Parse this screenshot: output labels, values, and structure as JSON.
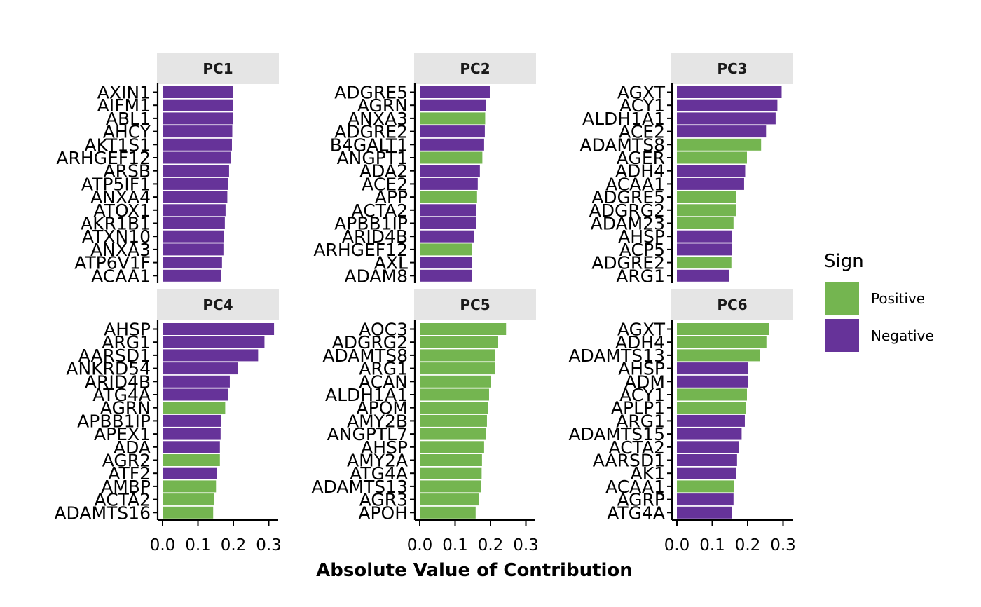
{
  "chart_data": {
    "type": "bar",
    "orientation": "horizontal",
    "xlabel": "Absolute Value of Contribution",
    "xlim": [
      0,
      0.33
    ],
    "xticks": [
      "0.0",
      "0.1",
      "0.2",
      "0.3"
    ],
    "grid": false,
    "legend": {
      "title": "Sign",
      "placement": "right",
      "items": [
        {
          "label": "Positive",
          "color": "#74B550"
        },
        {
          "label": "Negative",
          "color": "#663399"
        }
      ]
    },
    "colors": {
      "Positive": "#74B550",
      "Negative": "#663399",
      "strip": "#E5E5E5"
    },
    "panels": [
      {
        "title": "PC1",
        "genes": [
          "AXIN1",
          "AIFM1",
          "ABL1",
          "AHCY",
          "AKT1S1",
          "ARHGEF12",
          "ARSB",
          "ATP5IF1",
          "ANXA4",
          "ATOX1",
          "AKR1B1",
          "ATXN10",
          "ANXA3",
          "ATP6V1F",
          "ACAA1"
        ],
        "values": [
          0.2,
          0.199,
          0.199,
          0.197,
          0.196,
          0.194,
          0.188,
          0.186,
          0.183,
          0.178,
          0.176,
          0.174,
          0.172,
          0.168,
          0.165
        ],
        "signs": [
          "Negative",
          "Negative",
          "Negative",
          "Negative",
          "Negative",
          "Negative",
          "Negative",
          "Negative",
          "Negative",
          "Negative",
          "Negative",
          "Negative",
          "Negative",
          "Negative",
          "Negative"
        ]
      },
      {
        "title": "PC2",
        "genes": [
          "ADGRE5",
          "AGRN",
          "ANXA3",
          "ADGRE2",
          "B4GALT1",
          "ANGPT1",
          "ADA2",
          "ACE2",
          "APP",
          "ACTA2",
          "APBB1IP",
          "ARID4B",
          "ARHGEF12",
          "AXL",
          "ADAM8"
        ],
        "values": [
          0.198,
          0.188,
          0.185,
          0.184,
          0.182,
          0.177,
          0.17,
          0.164,
          0.162,
          0.16,
          0.16,
          0.154,
          0.148,
          0.148,
          0.148
        ],
        "signs": [
          "Negative",
          "Negative",
          "Positive",
          "Negative",
          "Negative",
          "Positive",
          "Negative",
          "Negative",
          "Positive",
          "Negative",
          "Negative",
          "Negative",
          "Positive",
          "Negative",
          "Negative"
        ]
      },
      {
        "title": "PC3",
        "genes": [
          "AGXT",
          "ACY1",
          "ALDH1A1",
          "ACE2",
          "ADAMTS8",
          "AGER",
          "ADH4",
          "ACAA1",
          "ADGRE5",
          "ADGRG2",
          "ADAM23",
          "AHSP",
          "ACP5",
          "ADGRE2",
          "ARG1"
        ],
        "values": [
          0.296,
          0.284,
          0.279,
          0.252,
          0.238,
          0.198,
          0.193,
          0.19,
          0.168,
          0.168,
          0.16,
          0.156,
          0.156,
          0.154,
          0.148
        ],
        "signs": [
          "Negative",
          "Negative",
          "Negative",
          "Negative",
          "Positive",
          "Positive",
          "Negative",
          "Negative",
          "Positive",
          "Positive",
          "Positive",
          "Negative",
          "Negative",
          "Positive",
          "Negative"
        ]
      },
      {
        "title": "PC4",
        "genes": [
          "AHSP",
          "ARG1",
          "AARSD1",
          "ANKRD54",
          "ARID4B",
          "ATG4A",
          "AGRN",
          "APBB1IP",
          "APEX1",
          "ADA",
          "AGR2",
          "ATF2",
          "AMBP",
          "ACTA2",
          "ADAMTS16"
        ],
        "values": [
          0.315,
          0.288,
          0.27,
          0.212,
          0.19,
          0.186,
          0.177,
          0.166,
          0.164,
          0.162,
          0.162,
          0.154,
          0.151,
          0.146,
          0.143
        ],
        "signs": [
          "Negative",
          "Negative",
          "Negative",
          "Negative",
          "Negative",
          "Negative",
          "Positive",
          "Negative",
          "Negative",
          "Negative",
          "Positive",
          "Negative",
          "Positive",
          "Positive",
          "Positive"
        ]
      },
      {
        "title": "PC5",
        "genes": [
          "AOC3",
          "ADGRG2",
          "ADAMTS8",
          "ARG1",
          "ACAN",
          "ALDH1A1",
          "APOM",
          "AMY2B",
          "ANGPTL7",
          "AHSP",
          "AMY2A",
          "ATG4A",
          "ADAMTS13",
          "AGR3",
          "APOH"
        ],
        "values": [
          0.244,
          0.221,
          0.213,
          0.212,
          0.2,
          0.196,
          0.194,
          0.19,
          0.188,
          0.182,
          0.176,
          0.175,
          0.173,
          0.167,
          0.158
        ],
        "signs": [
          "Positive",
          "Positive",
          "Positive",
          "Positive",
          "Positive",
          "Positive",
          "Positive",
          "Positive",
          "Positive",
          "Positive",
          "Positive",
          "Positive",
          "Positive",
          "Positive",
          "Positive"
        ]
      },
      {
        "title": "PC6",
        "genes": [
          "AGXT",
          "ADH4",
          "ADAMTS13",
          "AHSP",
          "ADM",
          "ACY1",
          "APLP1",
          "ARG1",
          "ADAMTS15",
          "ACTA2",
          "AARSD1",
          "AK1",
          "ACAA1",
          "AGRP",
          "ATG4A"
        ],
        "values": [
          0.26,
          0.253,
          0.235,
          0.202,
          0.202,
          0.198,
          0.195,
          0.192,
          0.183,
          0.176,
          0.17,
          0.168,
          0.162,
          0.16,
          0.156
        ],
        "signs": [
          "Positive",
          "Positive",
          "Positive",
          "Negative",
          "Negative",
          "Positive",
          "Positive",
          "Negative",
          "Negative",
          "Negative",
          "Negative",
          "Negative",
          "Positive",
          "Negative",
          "Negative"
        ]
      }
    ]
  }
}
